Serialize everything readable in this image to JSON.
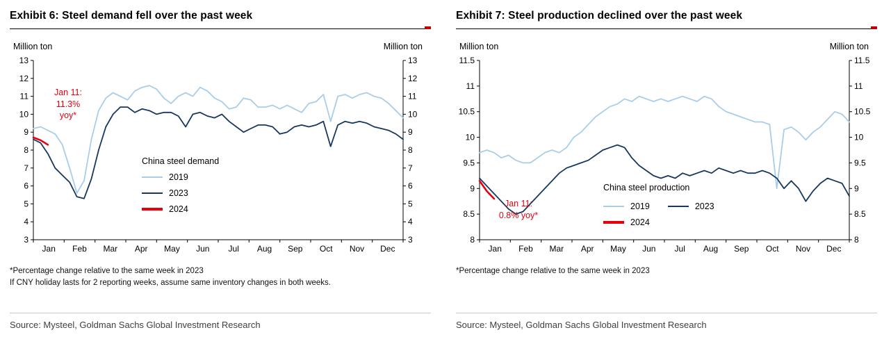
{
  "colors": {
    "series_2019": "#a9cde9",
    "series_2023": "#17375e",
    "series_2024": "#e8000d",
    "annotation_red": "#e8000d",
    "title_rule_red_tab": "#c00000",
    "axis": "#000000"
  },
  "chart_data": [
    {
      "type": "line",
      "title": "Exhibit 6: Steel demand fell over the past week",
      "legend_title": "China steel demand",
      "y_left_label": "Million ton",
      "y_right_label": "Million ton",
      "xlabel": "",
      "ylim": [
        3,
        13
      ],
      "yticks": [
        13,
        12,
        11,
        10,
        9,
        8,
        7,
        6,
        5,
        4,
        3
      ],
      "grid": false,
      "legend_position": "inside",
      "n_weeks": 52,
      "categories": [
        "Jan",
        "Feb",
        "Mar",
        "Apr",
        "May",
        "Jun",
        "Jul",
        "Aug",
        "Sep",
        "Oct",
        "Nov",
        "Dec"
      ],
      "series": [
        {
          "name": "2019",
          "color": "#a9cde9",
          "width": 1.8,
          "values": [
            9.2,
            9.3,
            9.1,
            8.9,
            8.3,
            7.0,
            5.6,
            6.3,
            8.6,
            10.2,
            10.9,
            11.2,
            11.0,
            10.8,
            11.3,
            11.5,
            11.6,
            11.4,
            10.9,
            10.6,
            11.0,
            11.2,
            11.0,
            11.5,
            11.3,
            10.9,
            10.7,
            10.3,
            10.4,
            10.9,
            10.8,
            10.4,
            10.4,
            10.5,
            10.3,
            10.5,
            10.3,
            10.1,
            10.6,
            10.7,
            11.1,
            9.6,
            11.0,
            11.1,
            10.9,
            11.1,
            11.2,
            11.0,
            10.9,
            10.6,
            10.2,
            9.8
          ]
        },
        {
          "name": "2023",
          "color": "#17375e",
          "width": 1.8,
          "values": [
            8.6,
            8.4,
            7.8,
            7.0,
            6.6,
            6.2,
            5.4,
            5.3,
            6.4,
            8.0,
            9.3,
            10.0,
            10.4,
            10.4,
            10.1,
            10.3,
            10.2,
            10.0,
            10.1,
            10.1,
            9.9,
            9.3,
            10.0,
            10.1,
            9.9,
            9.8,
            10.0,
            9.6,
            9.3,
            9.0,
            9.2,
            9.4,
            9.4,
            9.3,
            8.9,
            9.0,
            9.3,
            9.4,
            9.3,
            9.4,
            9.6,
            8.2,
            9.4,
            9.6,
            9.5,
            9.6,
            9.5,
            9.3,
            9.2,
            9.1,
            8.9,
            8.6
          ]
        },
        {
          "name": "2024",
          "color": "#e8000d",
          "width": 2.6,
          "values": [
            8.7,
            8.55,
            8.3
          ]
        }
      ],
      "annotation": [
        "Jan 11:",
        "11.3%",
        "yoy*"
      ],
      "footnotes": [
        "*Percentage change relative to the same week in 2023",
        "If CNY holiday lasts for 2 reporting weeks, assume same inventory changes in both weeks."
      ],
      "source": "Source: Mysteel, Goldman Sachs Global Investment Research"
    },
    {
      "type": "line",
      "title": "Exhibit 7: Steel production declined over the past week",
      "legend_title": "China steel production",
      "y_left_label": "Million ton",
      "y_right_label": "Million ton",
      "xlabel": "",
      "ylim": [
        8,
        11.5
      ],
      "yticks": [
        11.5,
        11,
        10.5,
        10,
        9.5,
        9,
        8.5,
        8
      ],
      "grid": false,
      "legend_position": "inside",
      "n_weeks": 52,
      "categories": [
        "Jan",
        "Feb",
        "Mar",
        "Apr",
        "May",
        "Jun",
        "Jul",
        "Aug",
        "Sep",
        "Oct",
        "Nov",
        "Dec"
      ],
      "series": [
        {
          "name": "2019",
          "color": "#a9cde9",
          "width": 1.8,
          "values": [
            9.7,
            9.75,
            9.7,
            9.6,
            9.65,
            9.55,
            9.5,
            9.5,
            9.6,
            9.7,
            9.75,
            9.7,
            9.8,
            10.0,
            10.1,
            10.25,
            10.4,
            10.5,
            10.6,
            10.65,
            10.75,
            10.7,
            10.8,
            10.75,
            10.7,
            10.75,
            10.7,
            10.75,
            10.8,
            10.75,
            10.7,
            10.8,
            10.75,
            10.6,
            10.5,
            10.45,
            10.4,
            10.35,
            10.3,
            10.3,
            10.25,
            9.0,
            10.15,
            10.2,
            10.1,
            9.95,
            10.1,
            10.2,
            10.35,
            10.5,
            10.45,
            10.3
          ]
        },
        {
          "name": "2023",
          "color": "#17375e",
          "width": 1.8,
          "values": [
            9.2,
            9.05,
            8.9,
            8.75,
            8.6,
            8.5,
            8.55,
            8.7,
            8.85,
            9.0,
            9.15,
            9.3,
            9.4,
            9.45,
            9.5,
            9.55,
            9.65,
            9.75,
            9.8,
            9.85,
            9.8,
            9.6,
            9.45,
            9.35,
            9.25,
            9.2,
            9.25,
            9.2,
            9.3,
            9.25,
            9.3,
            9.35,
            9.3,
            9.4,
            9.35,
            9.3,
            9.35,
            9.3,
            9.3,
            9.35,
            9.3,
            9.2,
            9.0,
            9.15,
            9.0,
            8.75,
            8.95,
            9.1,
            9.2,
            9.15,
            9.1,
            8.85
          ]
        },
        {
          "name": "2024",
          "color": "#e8000d",
          "width": 2.6,
          "values": [
            9.15,
            8.95,
            8.8
          ]
        }
      ],
      "annotation": [
        "Jan 11:",
        "0.8% yoy*"
      ],
      "footnotes": [
        "*Percentage change relative to the same week in 2023"
      ],
      "source": "Source: Mysteel, Goldman Sachs Global Investment Research"
    }
  ]
}
